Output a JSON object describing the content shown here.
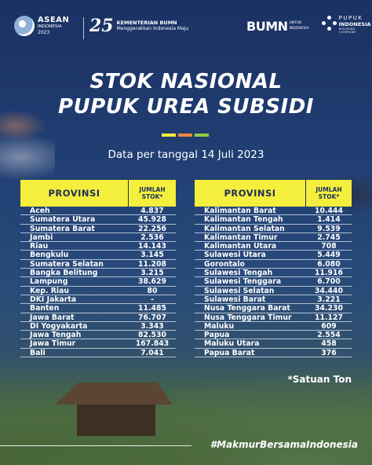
{
  "header": {
    "asean": {
      "line1": "ASEAN",
      "line2": "INDONESIA",
      "line3": "2023"
    },
    "bumn25_mark": "25",
    "kementerian": {
      "line1": "KEMENTERIAN BUMN",
      "line2": "Menggerakkan Indonesia Maju"
    },
    "bumn_logo": {
      "main": "BUMN",
      "sub1": "UNTUK",
      "sub2": "INDONESIA"
    },
    "pupuk": {
      "line1": "PUPUK",
      "line2": "INDONESIA",
      "line3": "HOLDING COMPANY"
    }
  },
  "title": {
    "line1": "STOK NASIONAL",
    "line2": "PUPUK UREA SUBSIDI"
  },
  "accent_colors": [
    "#f4ee3c",
    "#f08a3c",
    "#8ccf3c"
  ],
  "date": "Data per tanggal 14 Juli 2023",
  "table_headers": {
    "provinsi": "PROVINSI",
    "jumlah_line1": "JUMLAH",
    "jumlah_line2": "STOK*"
  },
  "table_left": [
    {
      "provinsi": "Aceh",
      "stok": "4.837"
    },
    {
      "provinsi": "Sumatera Utara",
      "stok": "45.928"
    },
    {
      "provinsi": "Sumatera Barat",
      "stok": "22.256"
    },
    {
      "provinsi": "Jambi",
      "stok": "2.536"
    },
    {
      "provinsi": "Riau",
      "stok": "14.143"
    },
    {
      "provinsi": "Bengkulu",
      "stok": "3.145"
    },
    {
      "provinsi": "Sumatera Selatan",
      "stok": "11.208"
    },
    {
      "provinsi": "Bangka Belitung",
      "stok": "3.215"
    },
    {
      "provinsi": "Lampung",
      "stok": "38.629"
    },
    {
      "provinsi": "Kep. Riau",
      "stok": "80"
    },
    {
      "provinsi": "DKI Jakarta",
      "stok": "-"
    },
    {
      "provinsi": "Banten",
      "stok": "11.485"
    },
    {
      "provinsi": "Jawa Barat",
      "stok": "76.707"
    },
    {
      "provinsi": "DI Yogyakarta",
      "stok": "3.343"
    },
    {
      "provinsi": "Jawa Tengah",
      "stok": "82.530"
    },
    {
      "provinsi": "Jawa Timur",
      "stok": "167.843"
    },
    {
      "provinsi": "Bali",
      "stok": "7.041"
    }
  ],
  "table_right": [
    {
      "provinsi": "Kalimantan Barat",
      "stok": "10.444"
    },
    {
      "provinsi": "Kalimantan Tengah",
      "stok": "1.414"
    },
    {
      "provinsi": "Kalimantan Selatan",
      "stok": "9.539"
    },
    {
      "provinsi": "Kalimantan Timur",
      "stok": "2.745"
    },
    {
      "provinsi": "Kalimantan Utara",
      "stok": "708"
    },
    {
      "provinsi": "Sulawesi Utara",
      "stok": "5.449"
    },
    {
      "provinsi": "Gorontalo",
      "stok": "6.080"
    },
    {
      "provinsi": "Sulawesi Tengah",
      "stok": "11.916"
    },
    {
      "provinsi": "Sulawesi Tenggara",
      "stok": "6.700"
    },
    {
      "provinsi": "Sulawesi Selatan",
      "stok": "34.440"
    },
    {
      "provinsi": "Sulawesi Barat",
      "stok": "3.221"
    },
    {
      "provinsi": "Nusa Tenggara Barat",
      "stok": "34.230"
    },
    {
      "provinsi": "Nusa Tenggara Timur",
      "stok": "11.127"
    },
    {
      "provinsi": "Maluku",
      "stok": "609"
    },
    {
      "provinsi": "Papua",
      "stok": "2.554"
    },
    {
      "provinsi": "Maluku Utara",
      "stok": "458"
    },
    {
      "provinsi": "Papua Barat",
      "stok": "376"
    }
  ],
  "footnote": "*Satuan Ton",
  "hashtag": "#MakmurBersamaIndonesia"
}
